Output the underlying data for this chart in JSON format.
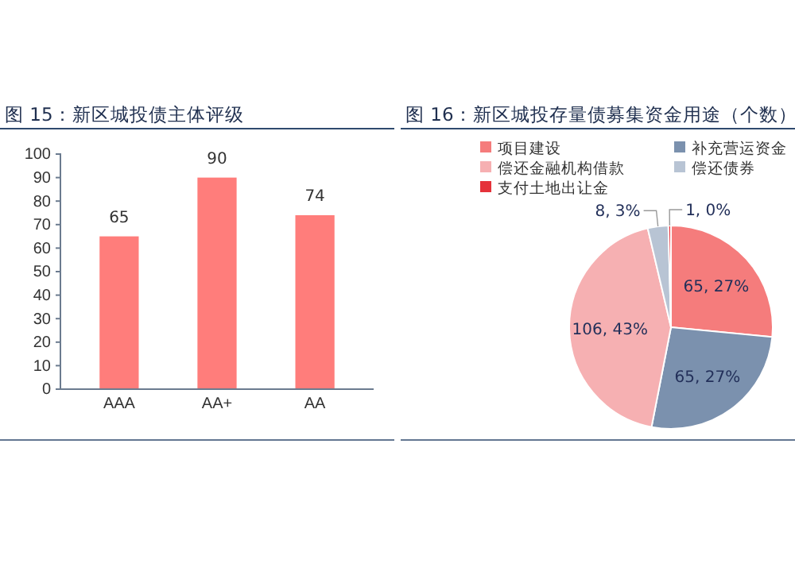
{
  "chart_data": [
    {
      "type": "bar",
      "title": "图 15：新区城投债主体评级",
      "categories": [
        "AAA",
        "AA+",
        "AA"
      ],
      "values": [
        65,
        90,
        74
      ],
      "color": "#ff7d7b",
      "ylim": [
        0,
        100
      ],
      "yticks": [
        0,
        10,
        20,
        30,
        40,
        50,
        60,
        70,
        80,
        90,
        100
      ],
      "data_labels": true,
      "grid": false
    },
    {
      "type": "pie",
      "title": "图 16：新区城投存量债募集资金用途（个数）",
      "categories": [
        "项目建设",
        "补充营运资金",
        "偿还金融机构借款",
        "偿还债券",
        "支付土地出让金"
      ],
      "values": [
        65,
        65,
        106,
        8,
        1
      ],
      "colors": [
        "#f57c7c",
        "#7b91ae",
        "#f6b0b2",
        "#b8c4d4",
        "#e5323a"
      ],
      "value_labels": [
        "65, 27%",
        "65, 27%",
        "106, 43%",
        "8, 3%",
        "1, 0%"
      ],
      "legend": "top"
    }
  ]
}
